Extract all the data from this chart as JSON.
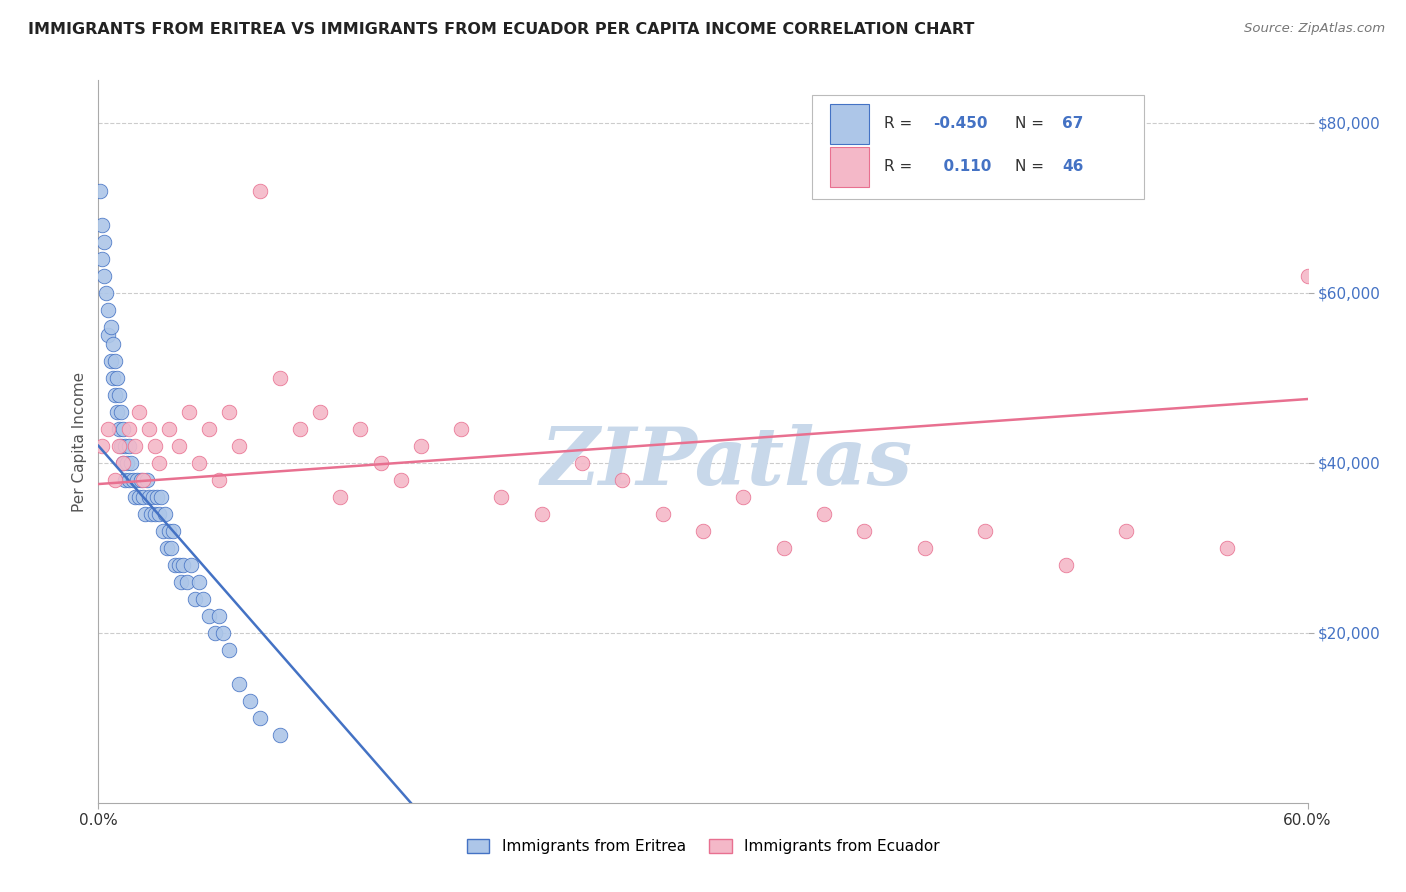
{
  "title": "IMMIGRANTS FROM ERITREA VS IMMIGRANTS FROM ECUADOR PER CAPITA INCOME CORRELATION CHART",
  "source_text": "Source: ZipAtlas.com",
  "ylabel": "Per Capita Income",
  "x_lim": [
    0.0,
    0.6
  ],
  "y_lim": [
    0,
    85000
  ],
  "color_eritrea": "#adc6e8",
  "color_ecuador": "#f4b8c8",
  "line_color_eritrea": "#4472c4",
  "line_color_ecuador": "#e87090",
  "title_color": "#222222",
  "source_color": "#777777",
  "background_color": "#ffffff",
  "grid_color": "#cccccc",
  "watermark_text": "ZIPatlas",
  "watermark_color": "#c8d8ea",
  "eritrea_line_x0": 0.0,
  "eritrea_line_y0": 42000,
  "eritrea_line_x1": 0.155,
  "eritrea_line_y1": 0,
  "ecuador_line_x0": 0.0,
  "ecuador_line_y0": 37500,
  "ecuador_line_x1": 0.6,
  "ecuador_line_y1": 47500,
  "eritrea_dots_x": [
    0.001,
    0.002,
    0.002,
    0.003,
    0.003,
    0.004,
    0.005,
    0.005,
    0.006,
    0.006,
    0.007,
    0.007,
    0.008,
    0.008,
    0.009,
    0.009,
    0.01,
    0.01,
    0.011,
    0.011,
    0.012,
    0.012,
    0.013,
    0.013,
    0.014,
    0.015,
    0.015,
    0.016,
    0.017,
    0.018,
    0.019,
    0.02,
    0.021,
    0.022,
    0.023,
    0.024,
    0.025,
    0.026,
    0.027,
    0.028,
    0.029,
    0.03,
    0.031,
    0.032,
    0.033,
    0.034,
    0.035,
    0.036,
    0.037,
    0.038,
    0.04,
    0.041,
    0.042,
    0.044,
    0.046,
    0.048,
    0.05,
    0.052,
    0.055,
    0.058,
    0.06,
    0.062,
    0.065,
    0.07,
    0.075,
    0.08,
    0.09
  ],
  "eritrea_dots_y": [
    72000,
    68000,
    64000,
    66000,
    62000,
    60000,
    58000,
    55000,
    56000,
    52000,
    50000,
    54000,
    48000,
    52000,
    46000,
    50000,
    48000,
    44000,
    46000,
    42000,
    44000,
    40000,
    42000,
    38000,
    40000,
    42000,
    38000,
    40000,
    38000,
    36000,
    38000,
    36000,
    38000,
    36000,
    34000,
    38000,
    36000,
    34000,
    36000,
    34000,
    36000,
    34000,
    36000,
    32000,
    34000,
    30000,
    32000,
    30000,
    32000,
    28000,
    28000,
    26000,
    28000,
    26000,
    28000,
    24000,
    26000,
    24000,
    22000,
    20000,
    22000,
    20000,
    18000,
    14000,
    12000,
    10000,
    8000
  ],
  "ecuador_dots_x": [
    0.002,
    0.005,
    0.008,
    0.01,
    0.012,
    0.015,
    0.018,
    0.02,
    0.022,
    0.025,
    0.028,
    0.03,
    0.035,
    0.04,
    0.045,
    0.05,
    0.055,
    0.06,
    0.065,
    0.07,
    0.08,
    0.09,
    0.1,
    0.11,
    0.12,
    0.13,
    0.14,
    0.15,
    0.16,
    0.18,
    0.2,
    0.22,
    0.24,
    0.26,
    0.28,
    0.3,
    0.32,
    0.34,
    0.36,
    0.38,
    0.41,
    0.44,
    0.48,
    0.51,
    0.56,
    0.6
  ],
  "ecuador_dots_y": [
    42000,
    44000,
    38000,
    42000,
    40000,
    44000,
    42000,
    46000,
    38000,
    44000,
    42000,
    40000,
    44000,
    42000,
    46000,
    40000,
    44000,
    38000,
    46000,
    42000,
    72000,
    50000,
    44000,
    46000,
    36000,
    44000,
    40000,
    38000,
    42000,
    44000,
    36000,
    34000,
    40000,
    38000,
    34000,
    32000,
    36000,
    30000,
    34000,
    32000,
    30000,
    32000,
    28000,
    32000,
    30000,
    62000
  ]
}
